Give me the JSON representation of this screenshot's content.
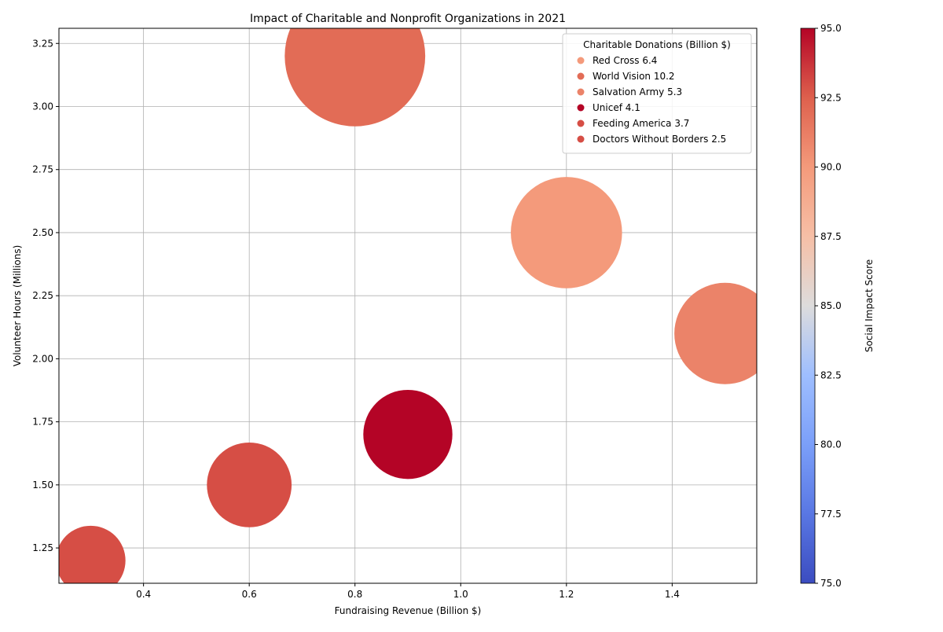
{
  "chart_data": {
    "type": "scatter",
    "title": "Impact of Charitable and Nonprofit Organizations in 2021",
    "xlabel": "Fundraising Revenue (Billion $)",
    "ylabel": "Volunteer Hours (Millions)",
    "xlim": [
      0.24,
      1.56
    ],
    "ylim": [
      1.11,
      3.31
    ],
    "x_ticks": [
      0.4,
      0.6,
      0.8,
      1.0,
      1.2,
      1.4
    ],
    "y_ticks": [
      1.25,
      1.5,
      1.75,
      2.0,
      2.25,
      2.5,
      2.75,
      3.0,
      3.25
    ],
    "grid": true,
    "legend_title": "Charitable Donations (Billion $)",
    "legend_position": "top-right",
    "colorbar": {
      "label": "Social Impact Score",
      "range": [
        75,
        95
      ],
      "ticks": [
        75.0,
        77.5,
        80.0,
        82.5,
        85.0,
        87.5,
        90.0,
        92.5,
        95.0
      ],
      "colormap": "coolwarm"
    },
    "series": [
      {
        "name": "Red Cross",
        "donations": 6.4,
        "x": 1.2,
        "y": 2.5,
        "score": 90
      },
      {
        "name": "World Vision",
        "donations": 10.2,
        "x": 0.8,
        "y": 3.2,
        "score": 92
      },
      {
        "name": "Salvation Army",
        "donations": 5.3,
        "x": 1.5,
        "y": 2.1,
        "score": 91
      },
      {
        "name": "Unicef",
        "donations": 4.1,
        "x": 0.9,
        "y": 1.7,
        "score": 95
      },
      {
        "name": "Feeding America",
        "donations": 3.7,
        "x": 0.6,
        "y": 1.5,
        "score": 93
      },
      {
        "name": "Doctors Without Borders",
        "donations": 2.5,
        "x": 0.3,
        "y": 1.2,
        "score": 93
      }
    ]
  }
}
